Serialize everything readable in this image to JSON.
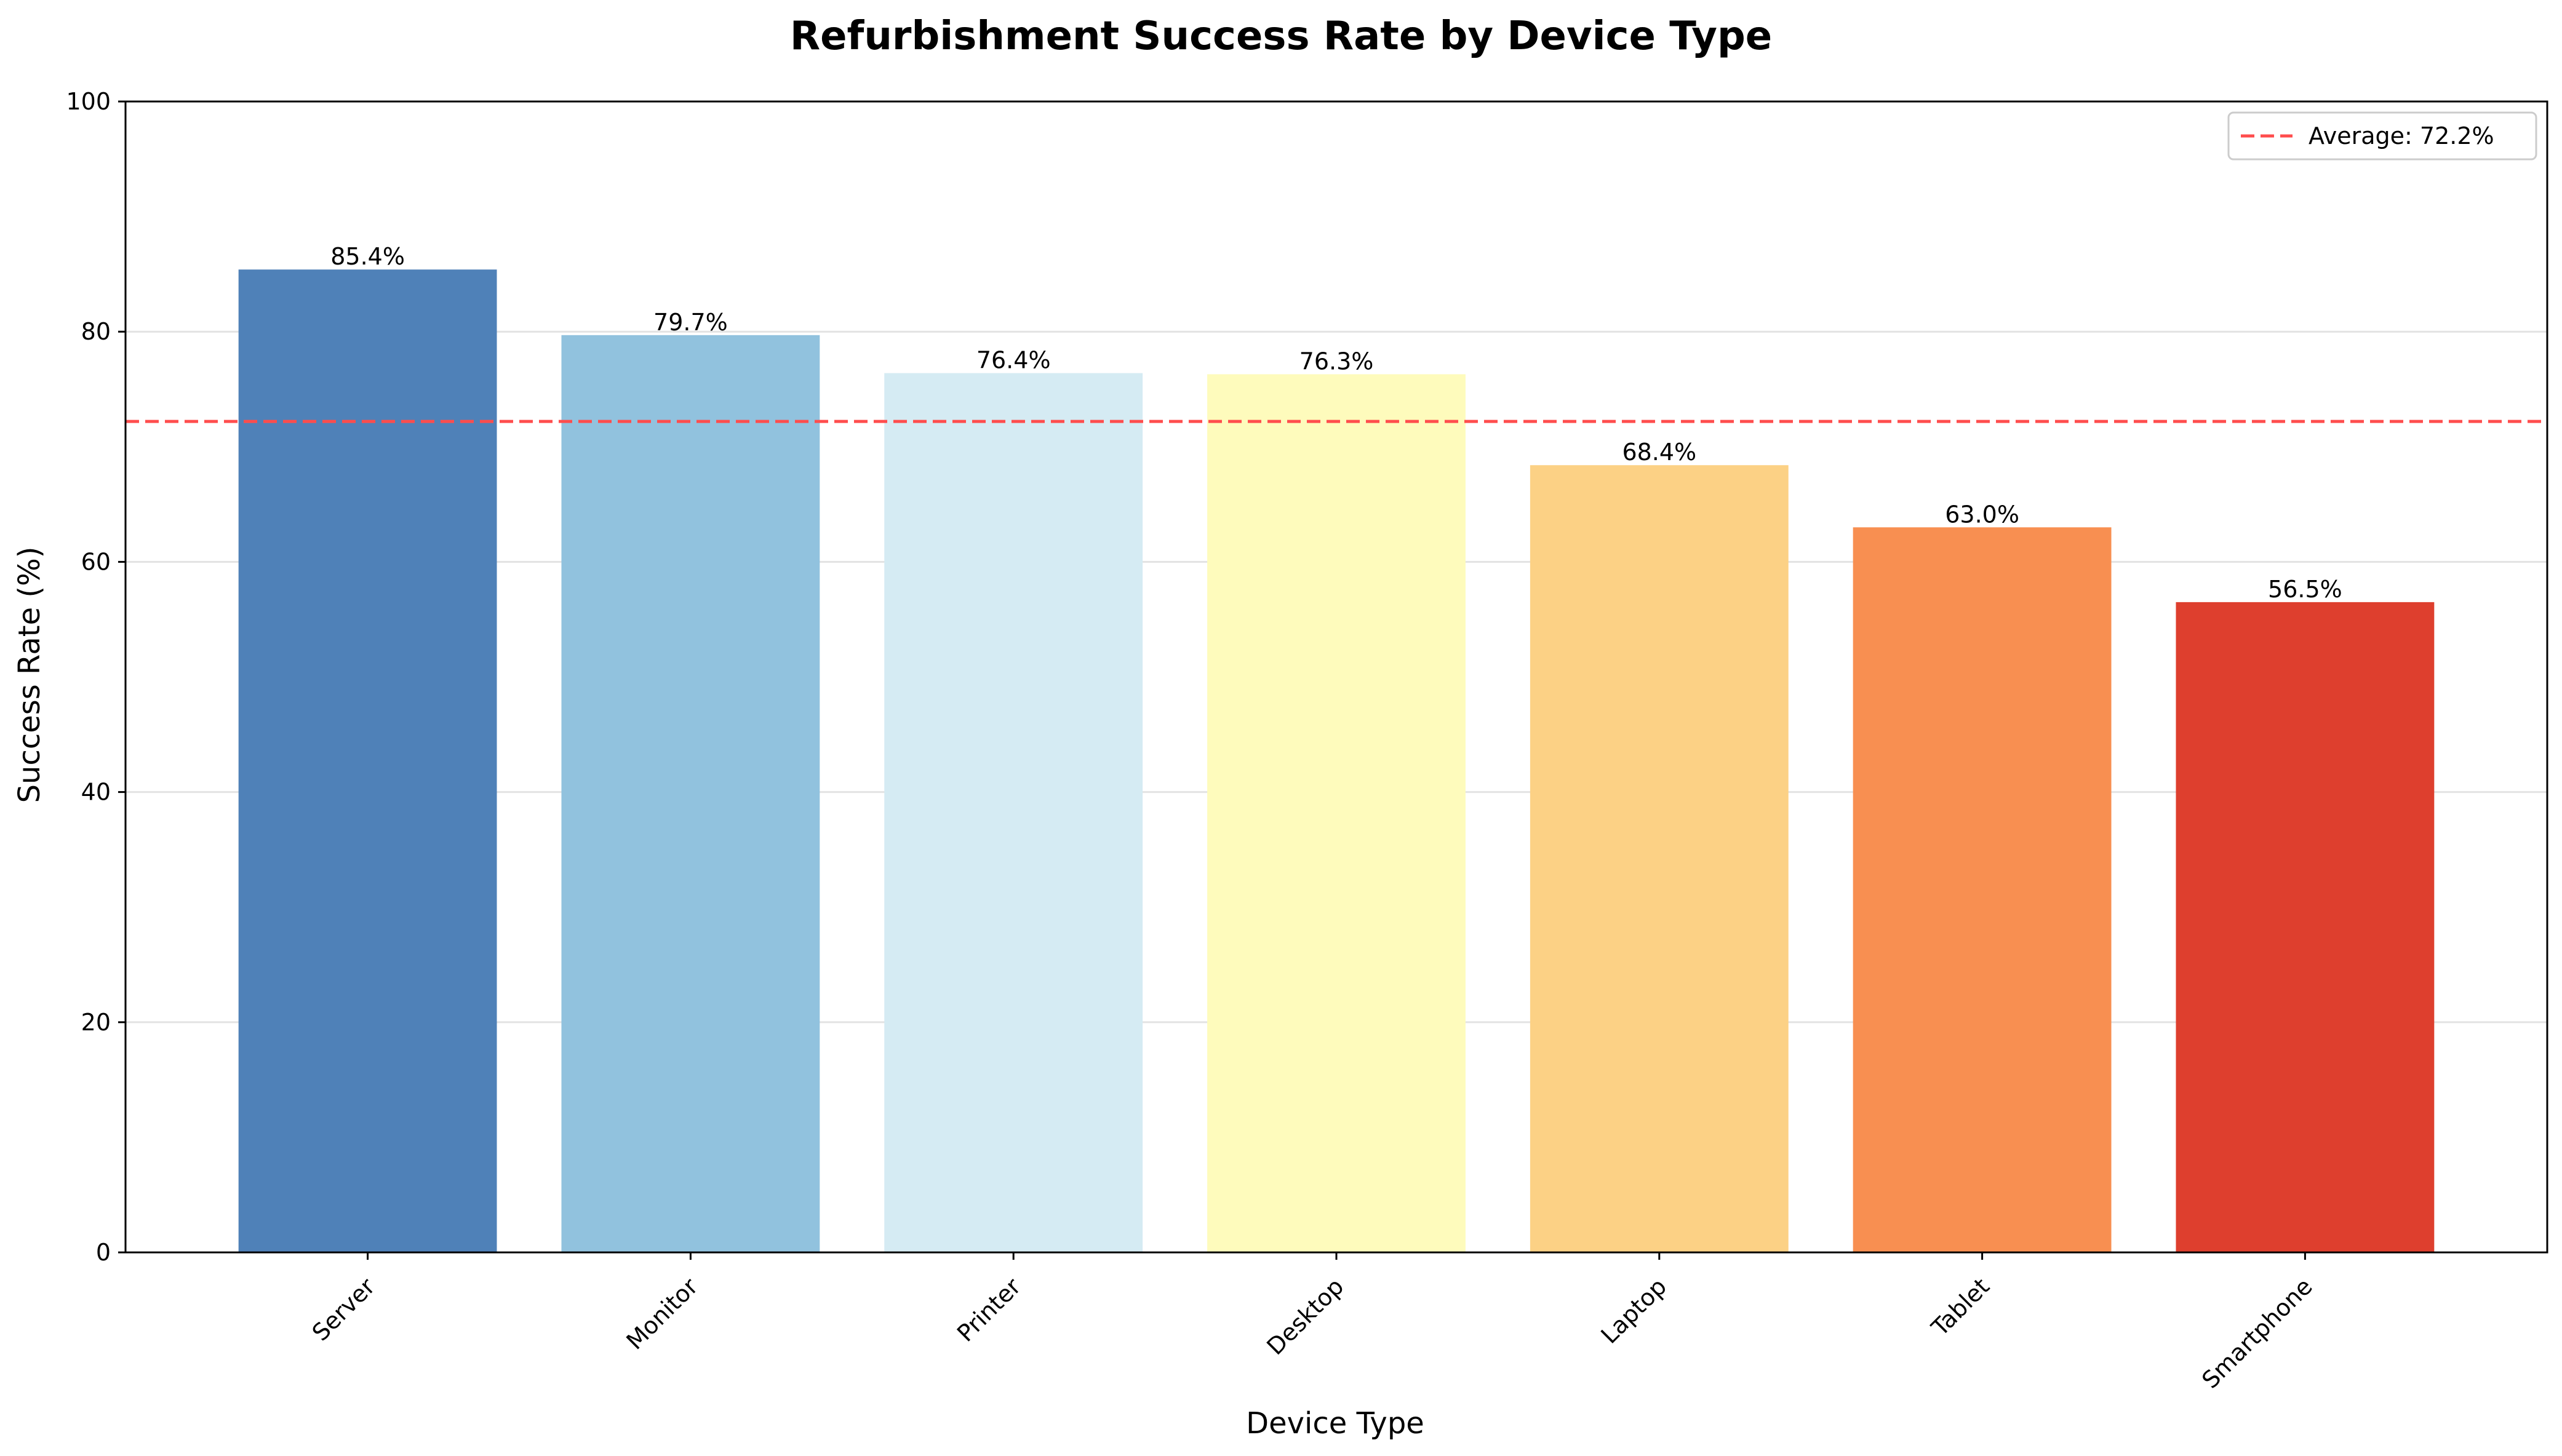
{
  "chart_data": {
    "type": "bar",
    "title": "Refurbishment Success Rate by Device Type",
    "xlabel": "Device Type",
    "ylabel": "Success Rate (%)",
    "categories": [
      "Server",
      "Monitor",
      "Printer",
      "Desktop",
      "Laptop",
      "Tablet",
      "Smartphone"
    ],
    "values": [
      85.4,
      79.7,
      76.4,
      76.3,
      68.4,
      63.0,
      56.5
    ],
    "value_labels": [
      "85.4%",
      "79.7%",
      "76.4%",
      "76.3%",
      "68.4%",
      "63.0%",
      "56.5%"
    ],
    "colors": [
      "#4f81b8",
      "#91c2de",
      "#d5ebf3",
      "#fefbbc",
      "#fcd185",
      "#f88f51",
      "#de3f2e"
    ],
    "ylim": [
      0,
      100
    ],
    "yticks": [
      0,
      20,
      40,
      60,
      80,
      100
    ],
    "ytick_labels": [
      "0",
      "20",
      "40",
      "60",
      "80",
      "100"
    ],
    "grid": "horizontal",
    "average": {
      "value": 72.2,
      "label": "Average: 72.2%",
      "color": "#ff4d4d",
      "style": "dashed"
    },
    "legend_position": "top-right"
  }
}
